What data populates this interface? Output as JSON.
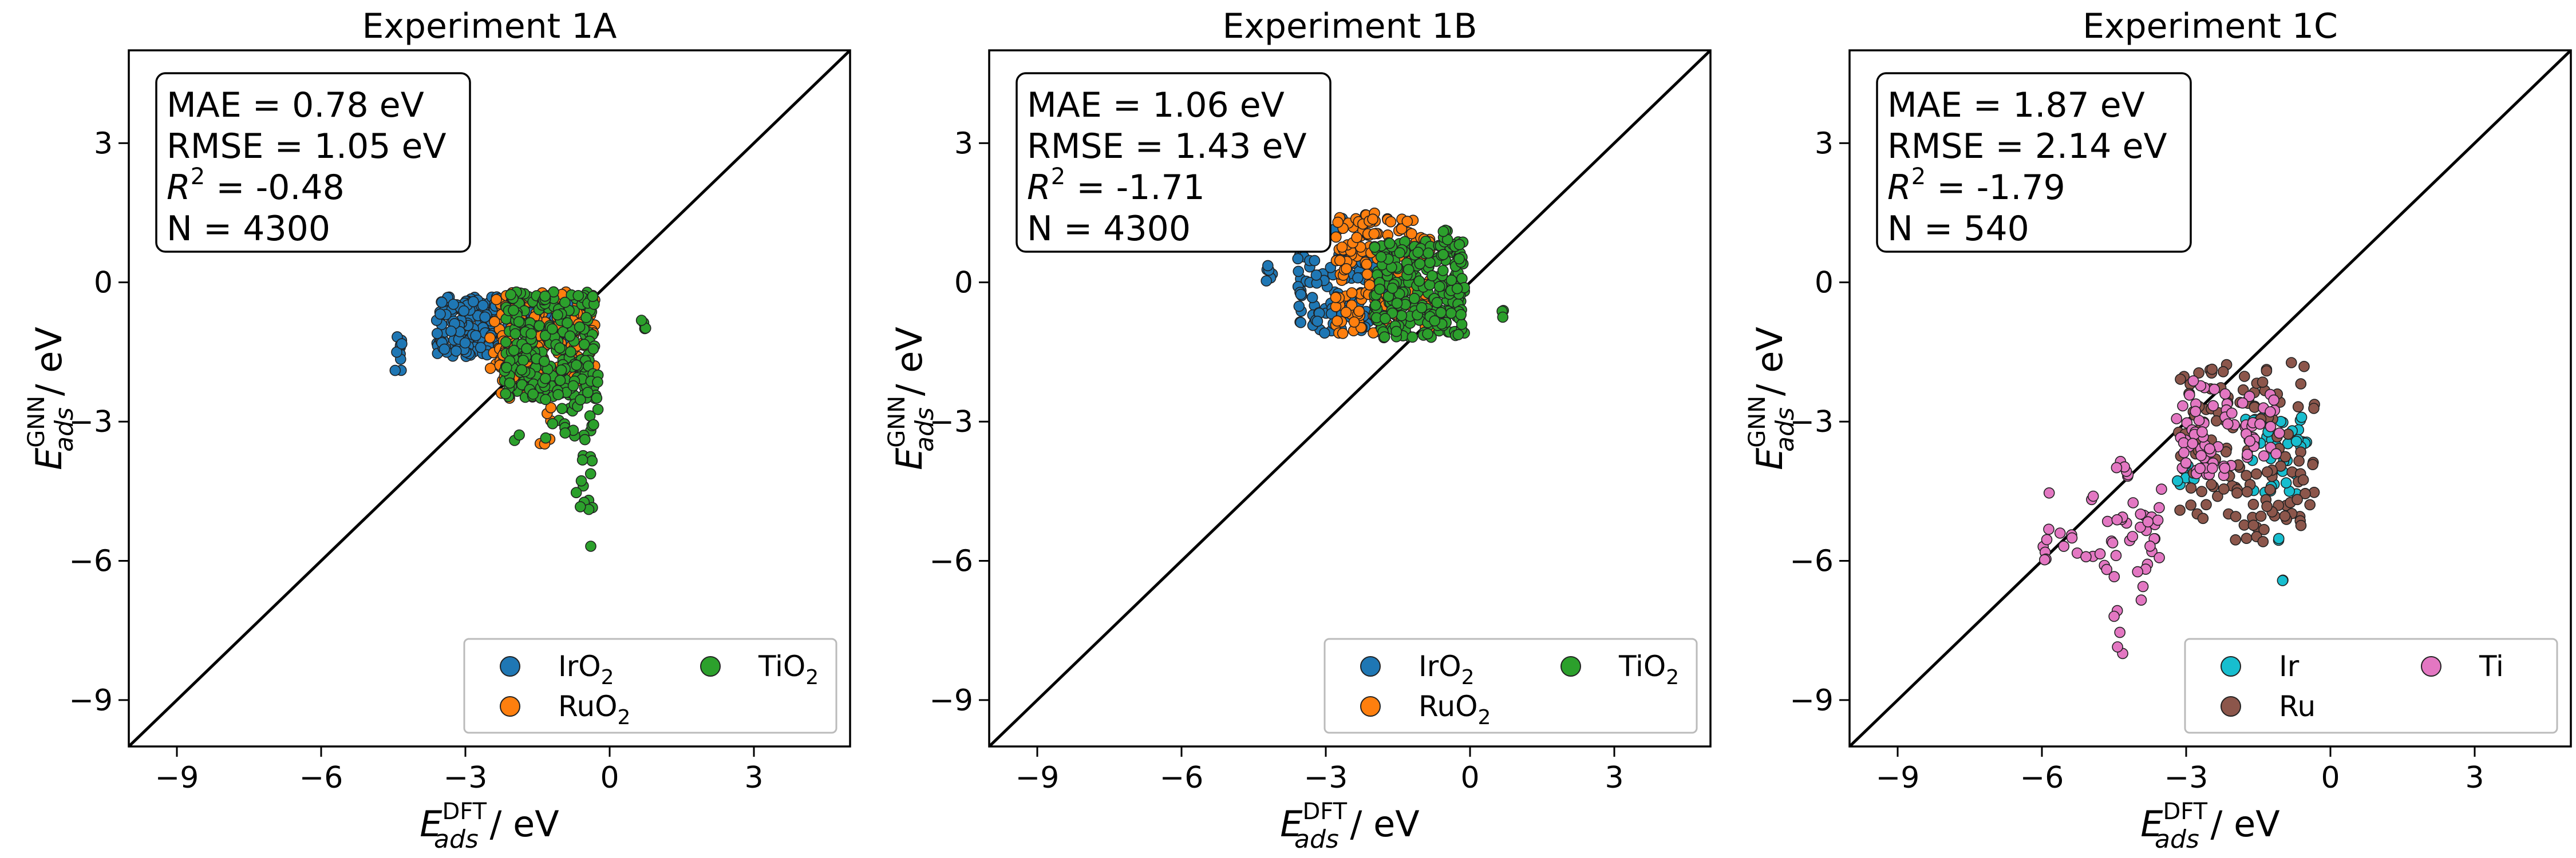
{
  "chart_data": [
    {
      "type": "scatter",
      "title": "Experiment 1A",
      "xlabel": {
        "main": "E",
        "sub": "ads",
        "sup": "DFT",
        "unit": " / eV"
      },
      "ylabel": {
        "main": "E",
        "sub": "ads",
        "sup": "GNN",
        "unit": " / eV"
      },
      "xlim": [
        -10,
        5
      ],
      "ylim": [
        -10,
        5
      ],
      "xticks": [
        -9,
        -6,
        -3,
        0,
        3
      ],
      "yticks": [
        -9,
        -6,
        -3,
        0,
        3
      ],
      "tick_labels": [
        "−9",
        "−6",
        "−3",
        "0",
        "3"
      ],
      "parity_line": true,
      "stats": {
        "mae": "MAE = 0.78 eV",
        "rmse": "RMSE = 1.05 eV",
        "r2_prefix": "R",
        "r2_value": " = -0.48",
        "n": "N = 4300"
      },
      "legend_position": "lower-right",
      "series": [
        {
          "name": "IrO",
          "sub": "2",
          "color": "#1f77b4",
          "clusters": [
            {
              "x": [
                -3.6,
                -0.6
              ],
              "y": [
                -1.4,
                -0.3
              ],
              "n": 170
            },
            {
              "x": [
                -3.6,
                -2.5
              ],
              "y": [
                -1.6,
                -0.4
              ],
              "n": 50
            },
            {
              "x": [
                -4.5,
                -4.3
              ],
              "y": [
                -1.9,
                -1.0
              ],
              "n": 10
            }
          ]
        },
        {
          "name": "RuO",
          "sub": "2",
          "color": "#ff7f0e",
          "clusters": [
            {
              "x": [
                -2.5,
                -0.3
              ],
              "y": [
                -2.2,
                -0.2
              ],
              "n": 170
            },
            {
              "x": [
                -2.3,
                -1.4
              ],
              "y": [
                -2.5,
                -1.5
              ],
              "n": 40
            },
            {
              "x": [
                -1.5,
                -1.2
              ],
              "y": [
                -3.5,
                -2.7
              ],
              "n": 6
            }
          ]
        },
        {
          "name": "TiO",
          "sub": "2",
          "color": "#2ca02c",
          "clusters": [
            {
              "x": [
                -2.2,
                -0.3
              ],
              "y": [
                -2.5,
                -0.2
              ],
              "n": 210
            },
            {
              "x": [
                -1.4,
                -0.2
              ],
              "y": [
                -3.4,
                -1.7
              ],
              "n": 55
            },
            {
              "x": [
                -0.7,
                -0.3
              ],
              "y": [
                -4.9,
                -3.3
              ],
              "n": 14
            },
            {
              "x": [
                -0.45,
                -0.35
              ],
              "y": [
                -5.8,
                -5.6
              ],
              "n": 1
            },
            {
              "x": [
                0.65,
                0.75
              ],
              "y": [
                -1.1,
                -0.7
              ],
              "n": 4
            },
            {
              "x": [
                -2.0,
                -1.8
              ],
              "y": [
                -3.5,
                -3.2
              ],
              "n": 2
            }
          ]
        }
      ]
    },
    {
      "type": "scatter",
      "title": "Experiment 1B",
      "xlabel": {
        "main": "E",
        "sub": "ads",
        "sup": "DFT",
        "unit": " / eV"
      },
      "ylabel": {
        "main": "E",
        "sub": "ads",
        "sup": "GNN",
        "unit": " / eV"
      },
      "xlim": [
        -10,
        5
      ],
      "ylim": [
        -10,
        5
      ],
      "xticks": [
        -9,
        -6,
        -3,
        0,
        3
      ],
      "yticks": [
        -9,
        -6,
        -3,
        0,
        3
      ],
      "tick_labels": [
        "−9",
        "−6",
        "−3",
        "0",
        "3"
      ],
      "parity_line": true,
      "stats": {
        "mae": "MAE = 1.06 eV",
        "rmse": "RMSE = 1.43 eV",
        "r2_prefix": "R",
        "r2_value": " = -1.71",
        "n": "N = 4300"
      },
      "legend_position": "lower-right",
      "series": [
        {
          "name": "IrO",
          "sub": "2",
          "color": "#1f77b4",
          "clusters": [
            {
              "x": [
                -3.6,
                -1.4
              ],
              "y": [
                -1.1,
                0.6
              ],
              "n": 130
            },
            {
              "x": [
                -4.3,
                -4.1
              ],
              "y": [
                0.0,
                0.4
              ],
              "n": 6
            },
            {
              "x": [
                -3.0,
                -2.6
              ],
              "y": [
                1.0,
                1.4
              ],
              "n": 6
            }
          ]
        },
        {
          "name": "RuO",
          "sub": "2",
          "color": "#ff7f0e",
          "clusters": [
            {
              "x": [
                -2.8,
                -0.8
              ],
              "y": [
                -1.1,
                1.4
              ],
              "n": 160
            },
            {
              "x": [
                -2.4,
                -1.9
              ],
              "y": [
                0.9,
                1.5
              ],
              "n": 14
            }
          ]
        },
        {
          "name": "TiO",
          "sub": "2",
          "color": "#2ca02c",
          "clusters": [
            {
              "x": [
                -2.0,
                -0.1
              ],
              "y": [
                -1.2,
                0.9
              ],
              "n": 240
            },
            {
              "x": [
                -0.6,
                -0.2
              ],
              "y": [
                0.5,
                1.2
              ],
              "n": 12
            },
            {
              "x": [
                0.65,
                0.75
              ],
              "y": [
                -0.8,
                -0.6
              ],
              "n": 3
            }
          ]
        }
      ]
    },
    {
      "type": "scatter",
      "title": "Experiment 1C",
      "xlabel": {
        "main": "E",
        "sub": "ads",
        "sup": "DFT",
        "unit": " / eV"
      },
      "ylabel": {
        "main": "E",
        "sub": "ads",
        "sup": "GNN",
        "unit": " / eV"
      },
      "xlim": [
        -10,
        5
      ],
      "ylim": [
        -10,
        5
      ],
      "xticks": [
        -9,
        -6,
        -3,
        0,
        3
      ],
      "yticks": [
        -9,
        -6,
        -3,
        0,
        3
      ],
      "tick_labels": [
        "−9",
        "−6",
        "−3",
        "0",
        "3"
      ],
      "parity_line": true,
      "stats": {
        "mae": "MAE = 1.87 eV",
        "rmse": "RMSE = 2.14 eV",
        "r2_prefix": "R",
        "r2_value": " = -1.79",
        "n": "N = 540"
      },
      "legend_position": "lower-right",
      "series": [
        {
          "name": "Ir",
          "sub": "",
          "color": "#17becf",
          "clusters": [
            {
              "x": [
                -1.8,
                -0.4
              ],
              "y": [
                -4.6,
                -2.9
              ],
              "n": 45
            },
            {
              "x": [
                -3.2,
                -2.8
              ],
              "y": [
                -4.6,
                -3.9
              ],
              "n": 8
            },
            {
              "x": [
                -1.1,
                -0.9
              ],
              "y": [
                -6.8,
                -5.5
              ],
              "n": 4
            }
          ]
        },
        {
          "name": "Ru",
          "sub": "",
          "color": "#8c564b",
          "clusters": [
            {
              "x": [
                -3.2,
                -0.3
              ],
              "y": [
                -5.3,
                -1.7
              ],
              "n": 120
            },
            {
              "x": [
                -2.0,
                -1.2
              ],
              "y": [
                -5.7,
                -4.5
              ],
              "n": 14
            }
          ]
        },
        {
          "name": "Ti",
          "sub": "",
          "color": "#e377c2",
          "clusters": [
            {
              "x": [
                -3.2,
                -1.6
              ],
              "y": [
                -4.2,
                -2.1
              ],
              "n": 60
            },
            {
              "x": [
                -6.0,
                -3.4
              ],
              "y": [
                -6.2,
                -4.4
              ],
              "n": 40
            },
            {
              "x": [
                -4.6,
                -3.6
              ],
              "y": [
                -6.9,
                -5.0
              ],
              "n": 12
            },
            {
              "x": [
                -4.5,
                -4.3
              ],
              "y": [
                -8.1,
                -7.0
              ],
              "n": 5
            },
            {
              "x": [
                -1.8,
                -1.0
              ],
              "y": [
                -3.8,
                -2.4
              ],
              "n": 20
            },
            {
              "x": [
                -4.5,
                -4.2
              ],
              "y": [
                -4.2,
                -3.6
              ],
              "n": 6
            }
          ]
        }
      ]
    }
  ]
}
